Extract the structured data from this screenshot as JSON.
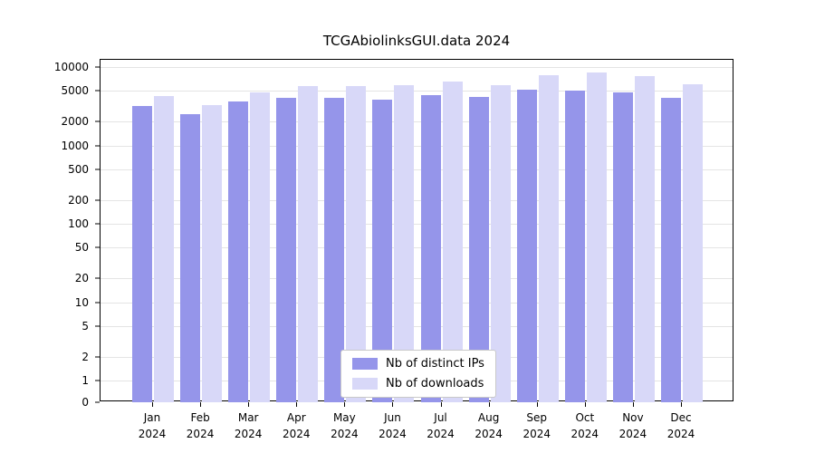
{
  "chart_data": {
    "type": "bar",
    "title": "TCGAbiolinksGUI.data 2024",
    "xlabel": "",
    "ylabel": "",
    "yscale": "log",
    "grid": true,
    "legend_position": "bottom-center-inside",
    "yticks": [
      0,
      1,
      2,
      5,
      10,
      20,
      50,
      100,
      200,
      500,
      1000,
      2000,
      5000,
      10000
    ],
    "ylim": [
      0,
      13000
    ],
    "categories": [
      "Jan",
      "Feb",
      "Mar",
      "Apr",
      "May",
      "Jun",
      "Jul",
      "Aug",
      "Sep",
      "Oct",
      "Nov",
      "Dec"
    ],
    "year": "2024",
    "series": [
      {
        "name": "Nb of distinct IPs",
        "color": "#9595ea",
        "values": [
          3200,
          2500,
          3600,
          4000,
          4000,
          3800,
          4400,
          4200,
          5200,
          5000,
          4700,
          4000
        ]
      },
      {
        "name": "Nb of downloads",
        "color": "#d8d8f8",
        "values": [
          4300,
          3300,
          4800,
          5700,
          5700,
          5900,
          6500,
          5900,
          7800,
          8600,
          7700,
          6100
        ]
      }
    ]
  }
}
